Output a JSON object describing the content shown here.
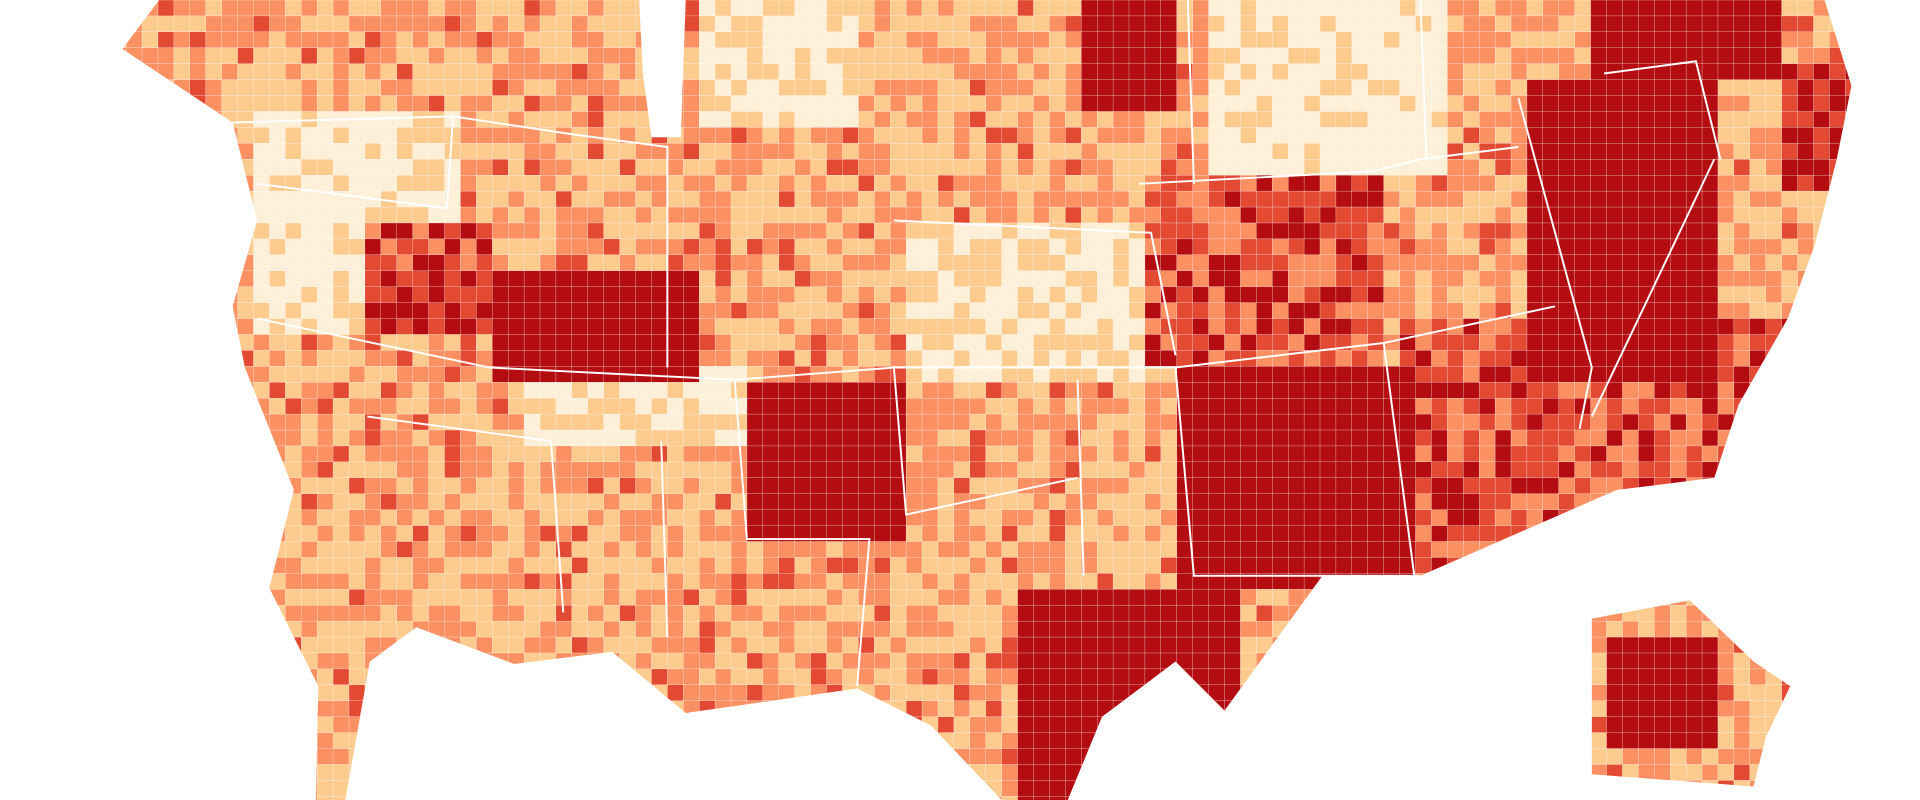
{
  "map": {
    "colors": [
      "#fdefd8",
      "#fdcb8e",
      "#fb9163",
      "#e34a33",
      "#b30d12"
    ]
  }
}
